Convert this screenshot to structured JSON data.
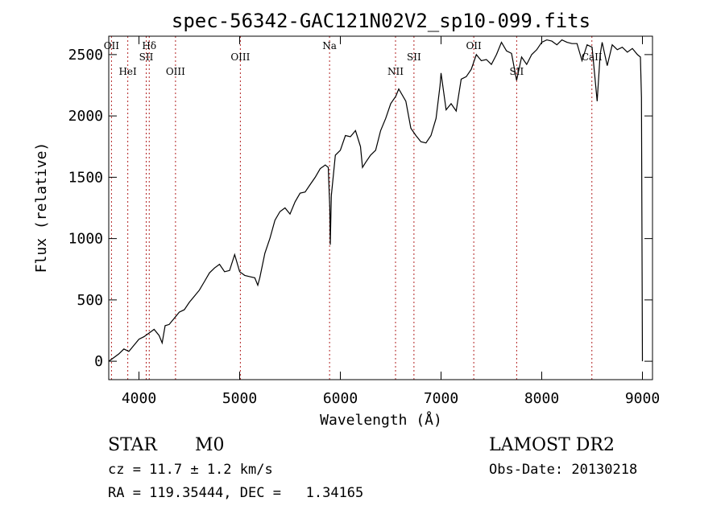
{
  "chart_data": {
    "type": "line",
    "title": "spec-56342-GAC121N02V2_sp10-099.fits",
    "xlabel": "Wavelength (Å)",
    "ylabel": "Flux (relative)",
    "xlim": [
      3700,
      9100
    ],
    "ylim": [
      -150,
      2650
    ],
    "xticks": [
      4000,
      5000,
      6000,
      7000,
      8000,
      9000
    ],
    "yticks": [
      0,
      500,
      1000,
      1500,
      2000,
      2500
    ],
    "grid": false,
    "line_color": "#000000",
    "marker_color": "#b22222",
    "series": [
      {
        "x": [
          3700,
          3750,
          3800,
          3850,
          3900,
          3950,
          4000,
          4050,
          4100,
          4150,
          4200,
          4230,
          4260,
          4300,
          4350,
          4400,
          4450,
          4500,
          4550,
          4600,
          4650,
          4700,
          4750,
          4800,
          4850,
          4900,
          4950,
          5000,
          5050,
          5100,
          5150,
          5180,
          5200,
          5250,
          5300,
          5350,
          5400,
          5450,
          5500,
          5550,
          5600,
          5650,
          5700,
          5750,
          5800,
          5850,
          5880,
          5895,
          5900,
          5910,
          5950,
          6000,
          6050,
          6100,
          6150,
          6200,
          6220,
          6250,
          6300,
          6350,
          6400,
          6450,
          6500,
          6550,
          6580,
          6650,
          6700,
          6750,
          6800,
          6850,
          6900,
          6950,
          6990,
          7000,
          7050,
          7100,
          7150,
          7200,
          7250,
          7300,
          7350,
          7400,
          7450,
          7500,
          7550,
          7600,
          7650,
          7700,
          7750,
          7800,
          7850,
          7900,
          7950,
          8000,
          8050,
          8100,
          8150,
          8200,
          8250,
          8300,
          8350,
          8400,
          8450,
          8500,
          8550,
          8580,
          8600,
          8650,
          8700,
          8750,
          8800,
          8850,
          8900,
          8950,
          8980,
          8990,
          9000
        ],
        "y": [
          0,
          30,
          60,
          100,
          80,
          130,
          180,
          200,
          230,
          260,
          210,
          150,
          290,
          300,
          350,
          400,
          420,
          480,
          530,
          580,
          650,
          720,
          760,
          790,
          730,
          740,
          870,
          730,
          700,
          690,
          680,
          620,
          680,
          880,
          1000,
          1150,
          1220,
          1250,
          1200,
          1300,
          1370,
          1380,
          1440,
          1500,
          1570,
          1600,
          1580,
          1250,
          950,
          1350,
          1680,
          1720,
          1840,
          1830,
          1880,
          1750,
          1580,
          1620,
          1680,
          1720,
          1880,
          1980,
          2100,
          2160,
          2220,
          2120,
          1900,
          1840,
          1790,
          1780,
          1840,
          1980,
          2250,
          2350,
          2050,
          2100,
          2040,
          2300,
          2320,
          2380,
          2500,
          2450,
          2460,
          2420,
          2500,
          2600,
          2530,
          2510,
          2290,
          2480,
          2420,
          2500,
          2540,
          2600,
          2620,
          2610,
          2580,
          2620,
          2600,
          2590,
          2590,
          2450,
          2580,
          2560,
          2120,
          2500,
          2600,
          2410,
          2580,
          2540,
          2560,
          2520,
          2550,
          2500,
          2480,
          2150,
          0
        ]
      }
    ],
    "line_markers": [
      {
        "label": "OII",
        "wavelength": 3727
      },
      {
        "label": "HeI",
        "wavelength": 3889
      },
      {
        "label": "SII",
        "wavelength": 4072
      },
      {
        "label": "Hδ",
        "wavelength": 4102
      },
      {
        "label": "OIII",
        "wavelength": 4363
      },
      {
        "label": "OIII",
        "wavelength": 5007
      },
      {
        "label": "Na",
        "wavelength": 5893
      },
      {
        "label": "NII",
        "wavelength": 6548
      },
      {
        "label": "SII",
        "wavelength": 6731
      },
      {
        "label": "OII",
        "wavelength": 7325
      },
      {
        "label": "SII",
        "wavelength": 7751
      },
      {
        "label": "CaII",
        "wavelength": 8498
      }
    ]
  },
  "info": {
    "object_class": "STAR",
    "subclass": "M0",
    "cz": "cz = 11.7 ± 1.2 km/s",
    "coords": "RA = 119.35444, DEC =   1.34165",
    "survey": "LAMOST DR2",
    "obs_date": "Obs-Date: 20130218"
  }
}
